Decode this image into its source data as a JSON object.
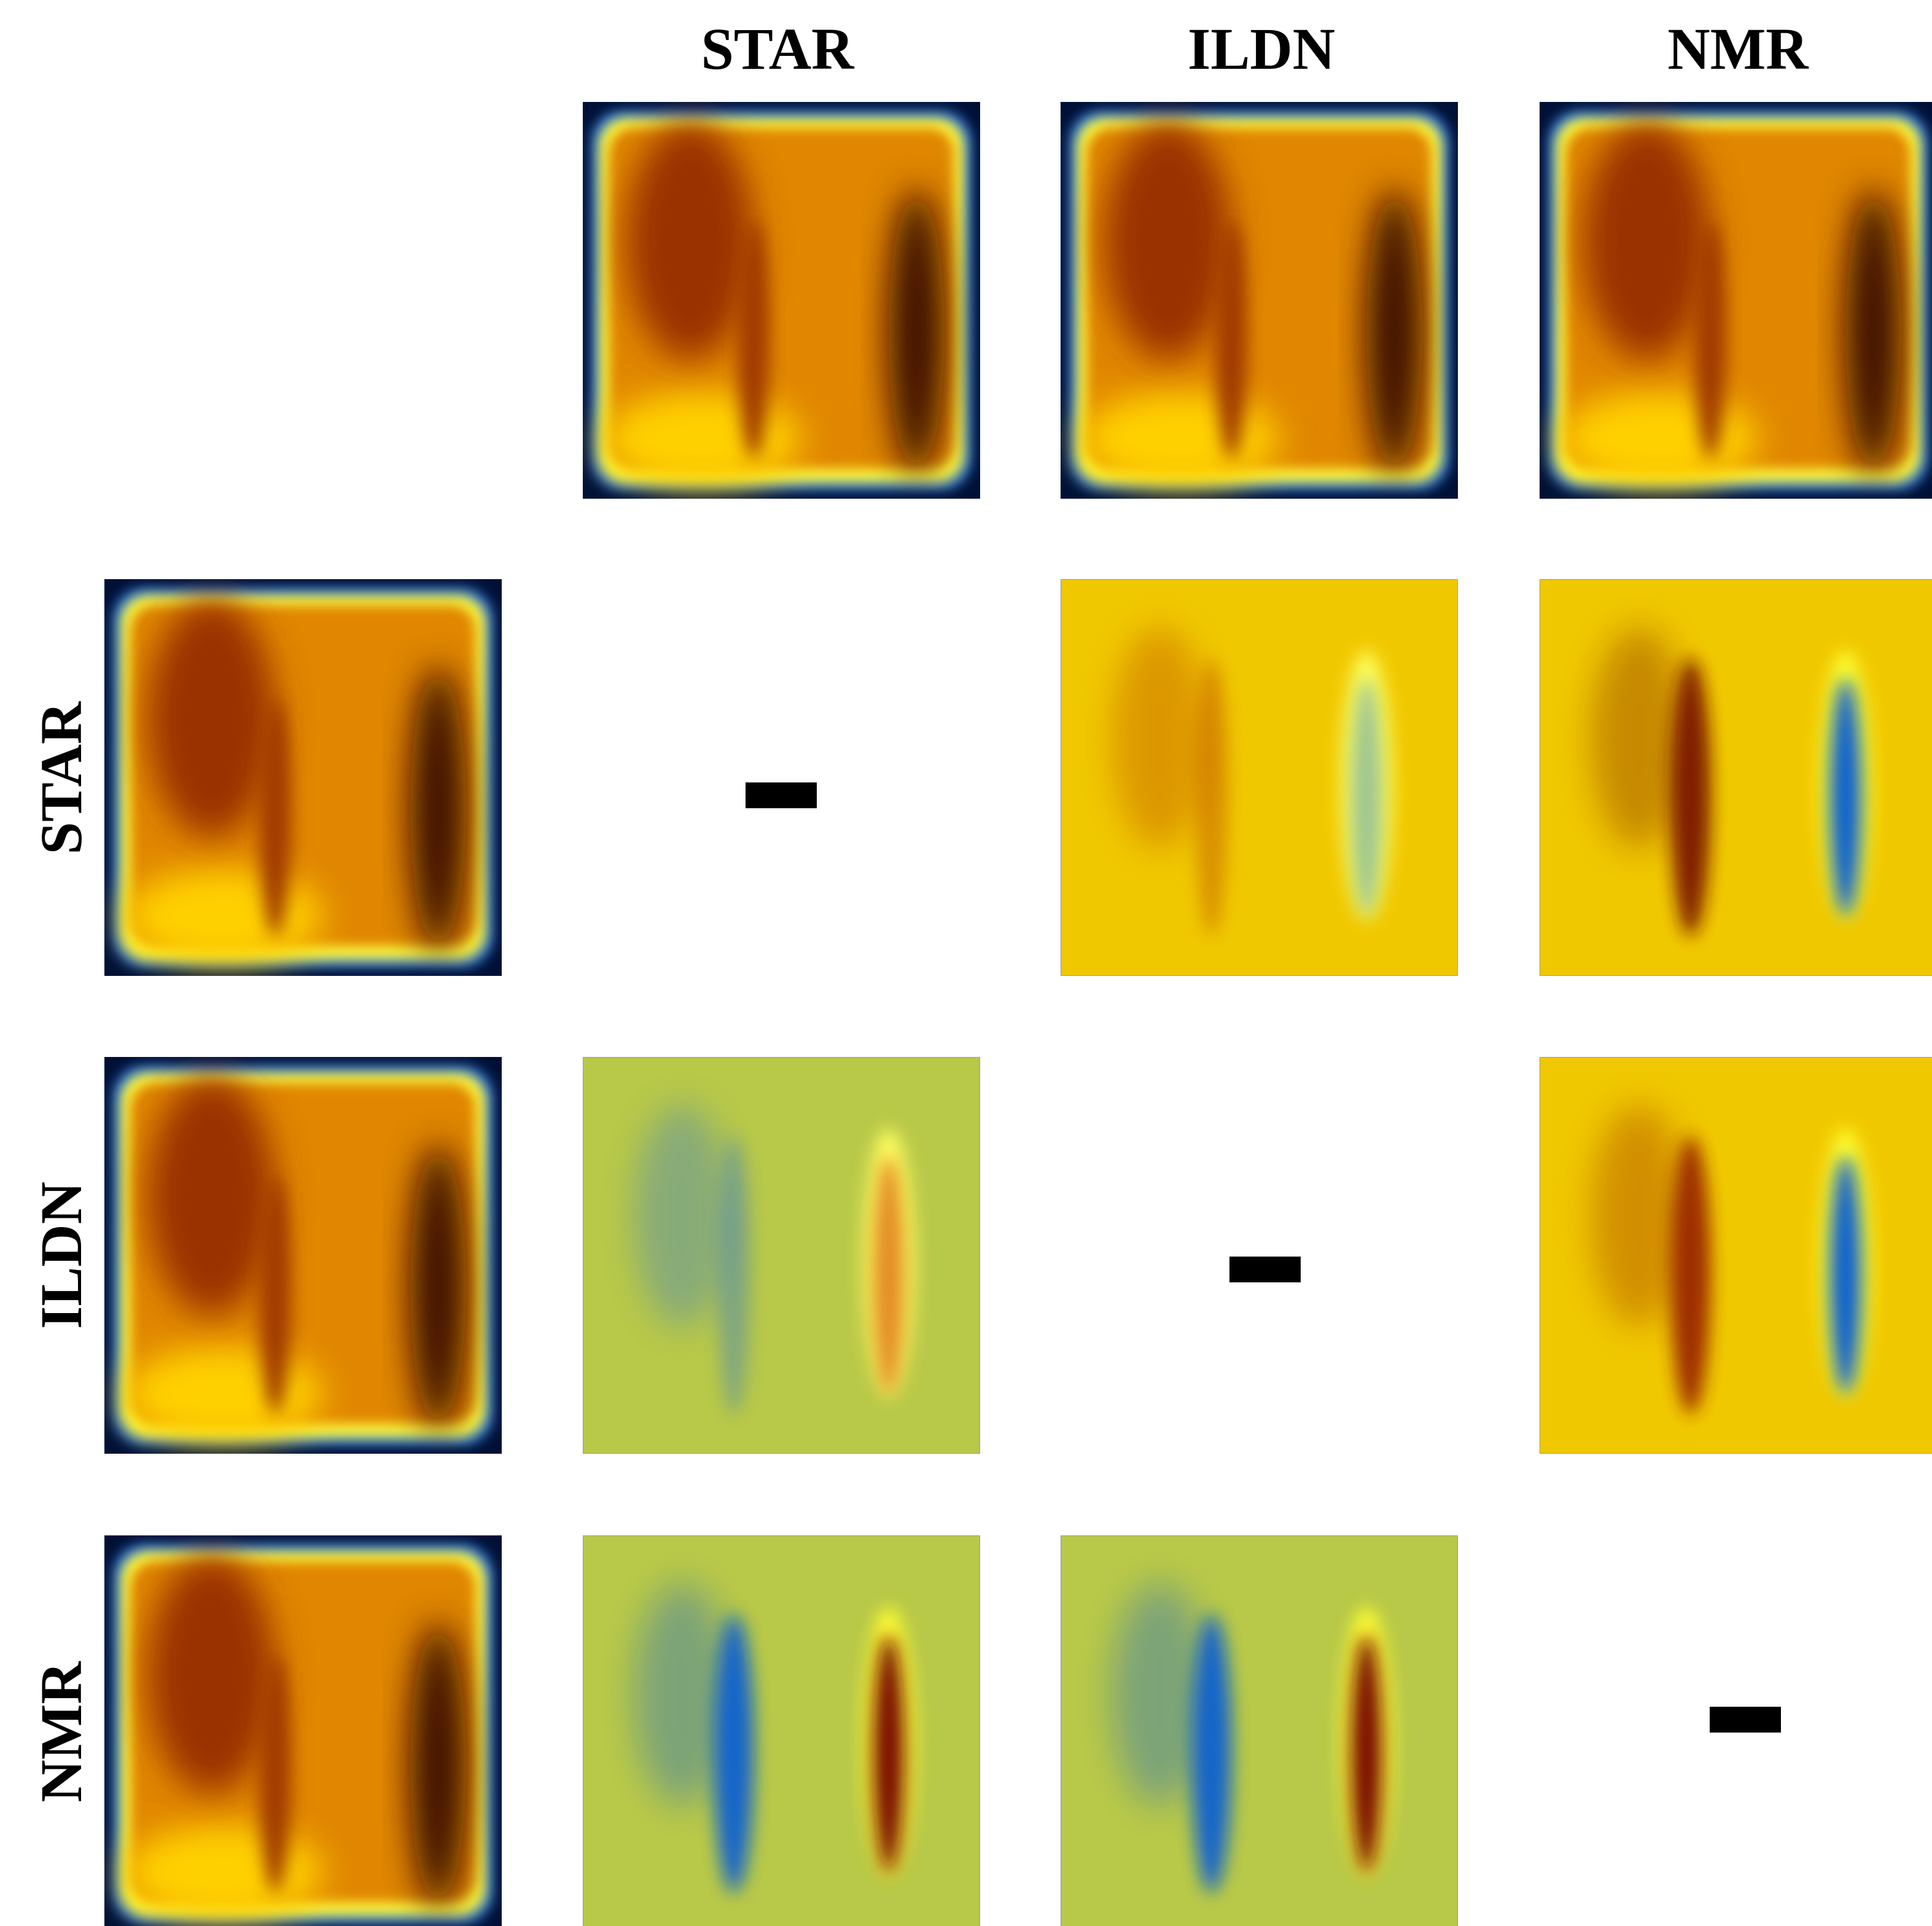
{
  "columns": [
    "STAR",
    "ILDN",
    "NMR"
  ],
  "rows": [
    "STAR",
    "ILDN",
    "NMR"
  ]
}
